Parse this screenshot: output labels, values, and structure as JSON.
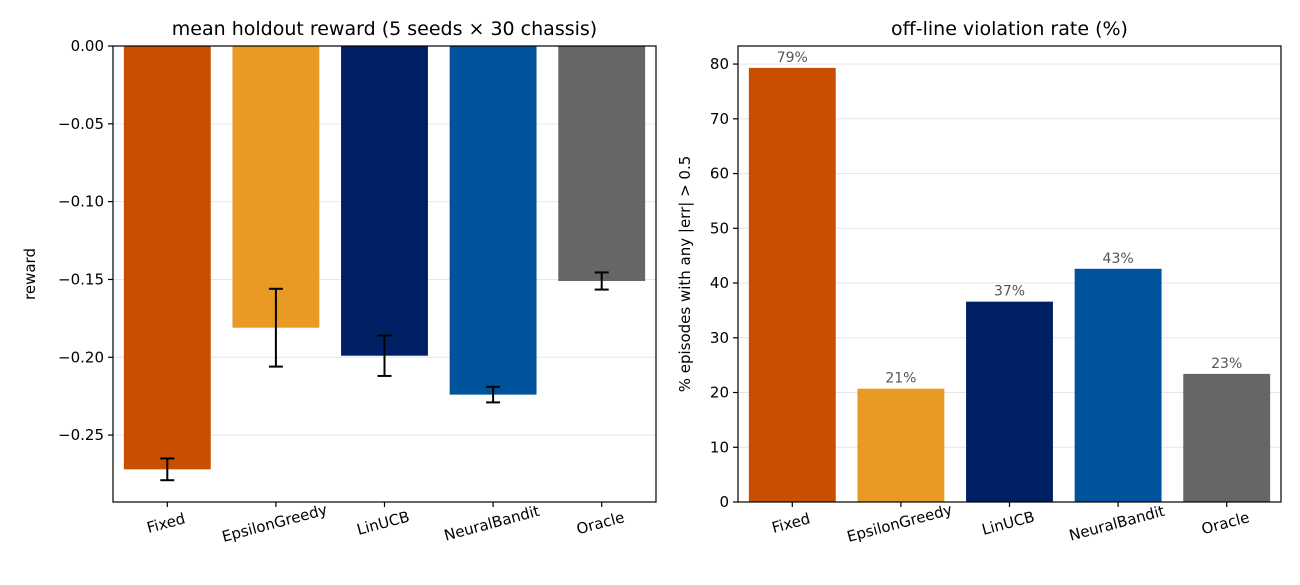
{
  "chart_data": [
    {
      "type": "bar",
      "title": "mean holdout reward (5 seeds × 30 chassis)",
      "xlabel": "",
      "ylabel": "reward",
      "categories": [
        "Fixed",
        "EpsilonGreedy",
        "LinUCB",
        "NeuralBandit",
        "Oracle"
      ],
      "values": [
        -0.272,
        -0.181,
        -0.199,
        -0.224,
        -0.151
      ],
      "errors": [
        0.007,
        0.025,
        0.013,
        0.005,
        0.0055
      ],
      "colors": [
        "#c94f00",
        "#e89a25",
        "#002066",
        "#00529b",
        "#666666"
      ],
      "ylim": [
        -0.293,
        0.0
      ],
      "yticks": [
        0.0,
        -0.05,
        -0.1,
        -0.15,
        -0.2,
        -0.25
      ],
      "ytick_labels": [
        "0.00",
        "−0.05",
        "−0.10",
        "−0.15",
        "−0.20",
        "−0.25"
      ],
      "grid": "y"
    },
    {
      "type": "bar",
      "title": "off-line violation rate (%)",
      "xlabel": "",
      "ylabel": "% episodes with any |err| > 0.5",
      "categories": [
        "Fixed",
        "EpsilonGreedy",
        "LinUCB",
        "NeuralBandit",
        "Oracle"
      ],
      "values": [
        79.3,
        20.7,
        36.6,
        42.6,
        23.4
      ],
      "data_labels": [
        "79%",
        "21%",
        "37%",
        "43%",
        "23%"
      ],
      "colors": [
        "#c94f00",
        "#e89a25",
        "#002066",
        "#00529b",
        "#666666"
      ],
      "ylim": [
        0,
        83.3
      ],
      "yticks": [
        0,
        10,
        20,
        30,
        40,
        50,
        60,
        70,
        80
      ],
      "ytick_labels": [
        "0",
        "10",
        "20",
        "30",
        "40",
        "50",
        "60",
        "70",
        "80"
      ],
      "grid": "y"
    }
  ]
}
